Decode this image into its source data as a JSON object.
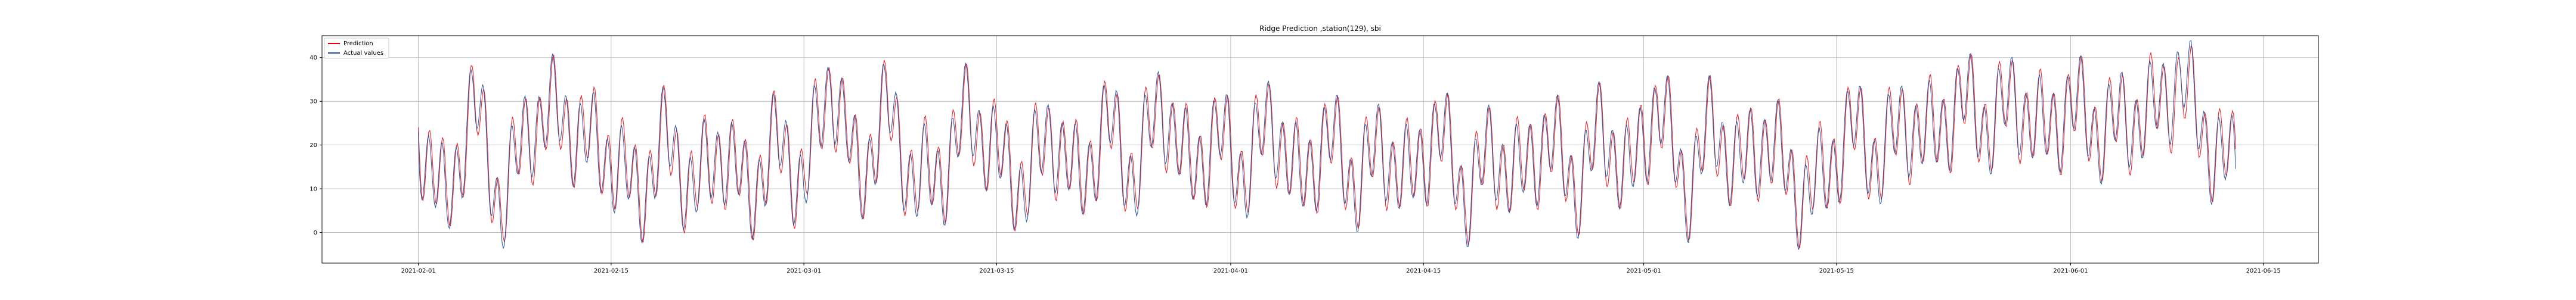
{
  "chart_data": {
    "type": "line",
    "title": "Ridge Prediction ,station(129), sbi",
    "xlabel": "",
    "ylabel": "",
    "grid": true,
    "legend_placement": "top-left",
    "x_range": [
      "2021-01-25",
      "2021-06-19"
    ],
    "ylim": [
      -7,
      45
    ],
    "x_ticks": [
      "2021-02-01",
      "2021-02-15",
      "2021-03-01",
      "2021-03-15",
      "2021-04-01",
      "2021-04-15",
      "2021-05-01",
      "2021-05-15",
      "2021-06-01",
      "2021-06-15"
    ],
    "y_ticks": [
      0,
      10,
      20,
      30,
      40
    ],
    "colors": {
      "Prediction": "#e8000b",
      "Actual values": "#1f4e99"
    },
    "series": [
      {
        "name": "Prediction",
        "points": [
          [
            "2021-02-01",
            24
          ],
          [
            "2021-02-03",
            6
          ],
          [
            "2021-02-05",
            30
          ],
          [
            "2021-02-07",
            6
          ],
          [
            "2021-02-09",
            24
          ],
          [
            "2021-02-11",
            27
          ],
          [
            "2021-02-13",
            22
          ],
          [
            "2021-02-15",
            18
          ],
          [
            "2021-02-17",
            9
          ],
          [
            "2021-02-19",
            21
          ],
          [
            "2021-02-21",
            10
          ],
          [
            "2021-02-23",
            19
          ],
          [
            "2021-02-25",
            9
          ],
          [
            "2021-02-27",
            20
          ],
          [
            "2021-03-01",
            12
          ],
          [
            "2021-03-03",
            35
          ],
          [
            "2021-03-05",
            12
          ],
          [
            "2021-03-07",
            28
          ],
          [
            "2021-03-09",
            12
          ],
          [
            "2021-03-11",
            14
          ],
          [
            "2021-03-13",
            27
          ],
          [
            "2021-03-15",
            18
          ],
          [
            "2021-03-17",
            11
          ],
          [
            "2021-03-19",
            23
          ],
          [
            "2021-03-21",
            11
          ],
          [
            "2021-03-23",
            25
          ],
          [
            "2021-03-25",
            13
          ],
          [
            "2021-03-27",
            30
          ],
          [
            "2021-03-29",
            14
          ],
          [
            "2021-03-31",
            22
          ],
          [
            "2021-04-02",
            14
          ],
          [
            "2021-04-04",
            26
          ],
          [
            "2021-04-06",
            11
          ],
          [
            "2021-04-08",
            22
          ],
          [
            "2021-04-10",
            12
          ],
          [
            "2021-04-12",
            19
          ],
          [
            "2021-04-14",
            12
          ],
          [
            "2021-04-16",
            24
          ],
          [
            "2021-04-18",
            9
          ],
          [
            "2021-04-20",
            18
          ],
          [
            "2021-04-22",
            13
          ],
          [
            "2021-04-24",
            22
          ],
          [
            "2021-04-26",
            11
          ],
          [
            "2021-04-28",
            23
          ],
          [
            "2021-04-30",
            13
          ],
          [
            "2021-05-02",
            30
          ],
          [
            "2021-05-04",
            10
          ],
          [
            "2021-05-06",
            24
          ],
          [
            "2021-05-08",
            15
          ],
          [
            "2021-05-10",
            22
          ],
          [
            "2021-05-12",
            10
          ],
          [
            "2021-05-14",
            12
          ],
          [
            "2021-05-16",
            24
          ],
          [
            "2021-05-18",
            17
          ],
          [
            "2021-05-20",
            25
          ],
          [
            "2021-05-22",
            22
          ],
          [
            "2021-05-24",
            30
          ],
          [
            "2021-05-26",
            25
          ],
          [
            "2021-05-28",
            30
          ],
          [
            "2021-05-30",
            23
          ],
          [
            "2021-06-01",
            29
          ],
          [
            "2021-06-03",
            24
          ],
          [
            "2021-06-05",
            25
          ],
          [
            "2021-06-07",
            28
          ],
          [
            "2021-06-09",
            34
          ],
          [
            "2021-06-11",
            21
          ],
          [
            "2021-06-13",
            15
          ]
        ]
      },
      {
        "name": "Actual values",
        "points": [
          [
            "2021-02-01",
            23
          ],
          [
            "2021-02-03",
            5
          ],
          [
            "2021-02-05",
            31
          ],
          [
            "2021-02-07",
            5
          ],
          [
            "2021-02-09",
            25
          ],
          [
            "2021-02-11",
            28
          ],
          [
            "2021-02-13",
            21
          ],
          [
            "2021-02-15",
            17
          ],
          [
            "2021-02-17",
            8
          ],
          [
            "2021-02-19",
            22
          ],
          [
            "2021-02-21",
            9
          ],
          [
            "2021-02-23",
            20
          ],
          [
            "2021-02-25",
            8
          ],
          [
            "2021-02-27",
            21
          ],
          [
            "2021-03-01",
            11
          ],
          [
            "2021-03-03",
            36
          ],
          [
            "2021-03-05",
            11
          ],
          [
            "2021-03-07",
            29
          ],
          [
            "2021-03-09",
            11
          ],
          [
            "2021-03-11",
            13
          ],
          [
            "2021-03-13",
            28
          ],
          [
            "2021-03-15",
            17
          ],
          [
            "2021-03-17",
            10
          ],
          [
            "2021-03-19",
            24
          ],
          [
            "2021-03-21",
            10
          ],
          [
            "2021-03-23",
            26
          ],
          [
            "2021-03-25",
            12
          ],
          [
            "2021-03-27",
            31
          ],
          [
            "2021-03-29",
            13
          ],
          [
            "2021-03-31",
            23
          ],
          [
            "2021-04-02",
            13
          ],
          [
            "2021-04-04",
            27
          ],
          [
            "2021-04-06",
            10
          ],
          [
            "2021-04-08",
            23
          ],
          [
            "2021-04-10",
            11
          ],
          [
            "2021-04-12",
            20
          ],
          [
            "2021-04-14",
            11
          ],
          [
            "2021-04-16",
            25
          ],
          [
            "2021-04-18",
            8
          ],
          [
            "2021-04-20",
            19
          ],
          [
            "2021-04-22",
            12
          ],
          [
            "2021-04-24",
            23
          ],
          [
            "2021-04-26",
            10
          ],
          [
            "2021-04-28",
            24
          ],
          [
            "2021-04-30",
            12
          ],
          [
            "2021-05-02",
            31
          ],
          [
            "2021-05-04",
            9
          ],
          [
            "2021-05-06",
            25
          ],
          [
            "2021-05-08",
            14
          ],
          [
            "2021-05-10",
            23
          ],
          [
            "2021-05-12",
            9
          ],
          [
            "2021-05-14",
            11
          ],
          [
            "2021-05-16",
            25
          ],
          [
            "2021-05-18",
            16
          ],
          [
            "2021-05-20",
            26
          ],
          [
            "2021-05-22",
            21
          ],
          [
            "2021-05-24",
            31
          ],
          [
            "2021-05-26",
            24
          ],
          [
            "2021-05-28",
            31
          ],
          [
            "2021-05-30",
            22
          ],
          [
            "2021-06-01",
            30
          ],
          [
            "2021-06-03",
            23
          ],
          [
            "2021-06-05",
            26
          ],
          [
            "2021-06-07",
            27
          ],
          [
            "2021-06-09",
            37
          ],
          [
            "2021-06-11",
            20
          ],
          [
            "2021-06-13",
            14
          ]
        ]
      }
    ]
  }
}
